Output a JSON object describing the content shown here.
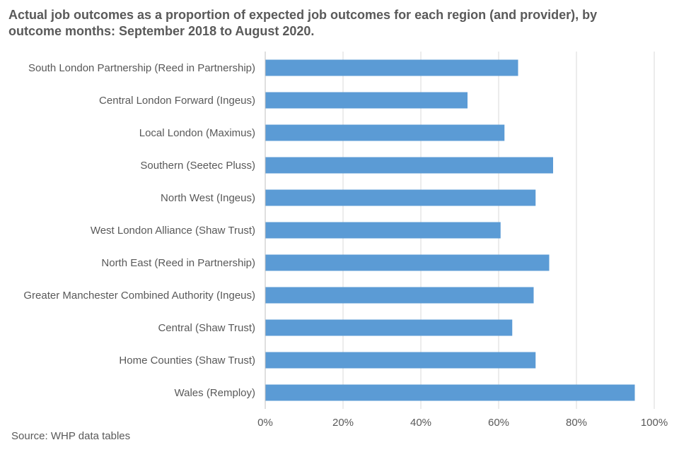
{
  "title": "Actual job outcomes as a proportion of expected job outcomes for each region (and provider), by outcome months: September 2018 to August 2020.",
  "source": "Source:  WHP data tables",
  "colors": {
    "bar": "#5B9BD5",
    "grid": "#D9D9D9",
    "axis": "#BFBFBF",
    "text": "#595959"
  },
  "chart_data": {
    "type": "bar",
    "orientation": "horizontal",
    "title": "Actual job outcomes as a proportion of expected job outcomes for each region (and provider), by outcome months: September 2018 to August 2020.",
    "categories": [
      "South London Partnership (Reed in Partnership)",
      "Central London Forward (Ingeus)",
      "Local London (Maximus)",
      "Southern (Seetec Pluss)",
      "North West (Ingeus)",
      "West London Alliance (Shaw Trust)",
      "North East (Reed in Partnership)",
      "Greater Manchester Combined Authority (Ingeus)",
      "Central (Shaw Trust)",
      "Home Counties (Shaw Trust)",
      "Wales (Remploy)"
    ],
    "values": [
      0.65,
      0.52,
      0.615,
      0.74,
      0.695,
      0.605,
      0.73,
      0.69,
      0.635,
      0.695,
      0.95
    ],
    "xlim": [
      0,
      1
    ],
    "xticks": [
      0,
      0.2,
      0.4,
      0.6,
      0.8,
      1.0
    ],
    "xtick_labels": [
      "0%",
      "20%",
      "40%",
      "60%",
      "80%",
      "100%"
    ],
    "grid": true,
    "legend": "none"
  }
}
